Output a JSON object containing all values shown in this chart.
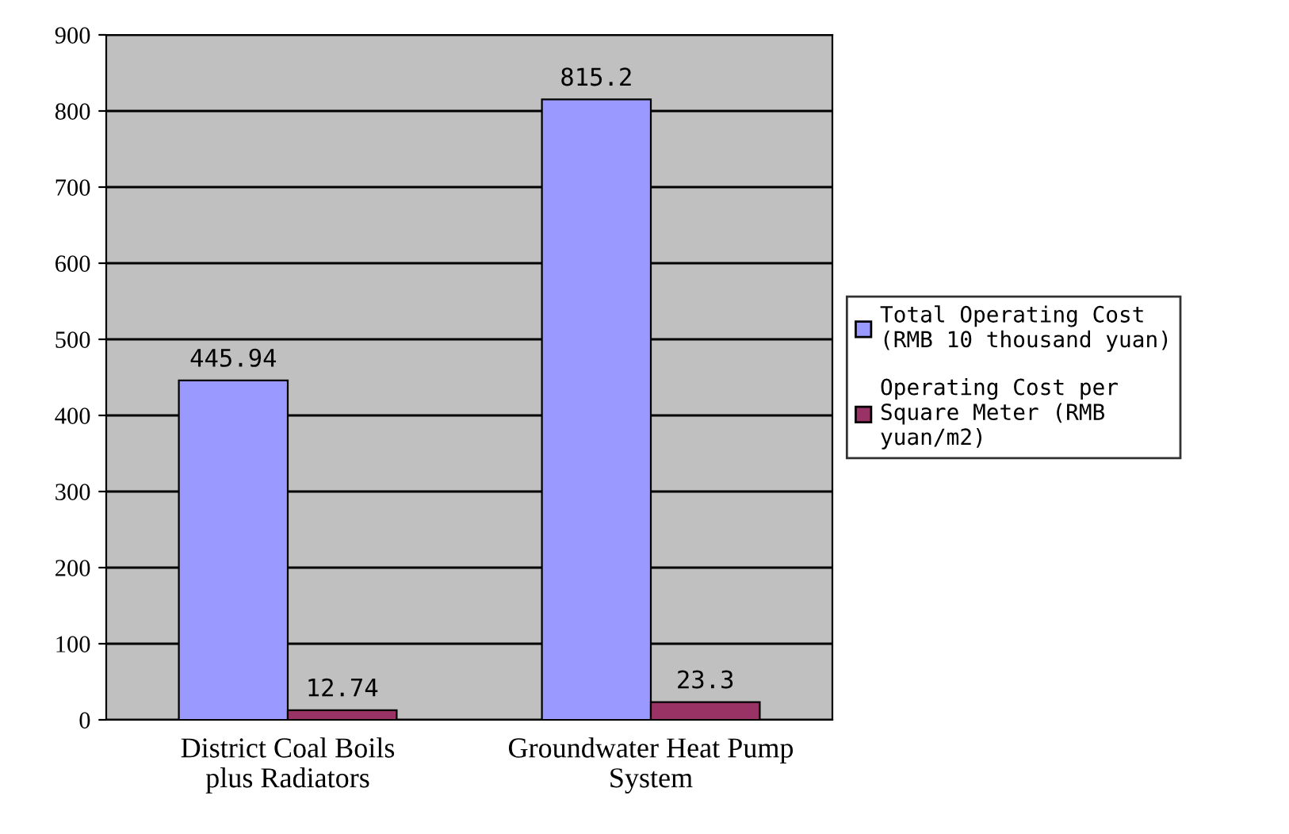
{
  "chart_data": {
    "type": "bar",
    "categories": [
      "District Coal Boils plus Radiators",
      "Groundwater Heat Pump System"
    ],
    "series": [
      {
        "name": "Total Operating Cost (RMB 10 thousand yuan)",
        "color": "#9999ff",
        "values": [
          445.94,
          815.2
        ]
      },
      {
        "name": "Operating Cost per Square Meter (RMB yuan/m2)",
        "color": "#993366",
        "values": [
          12.74,
          23.3
        ]
      }
    ],
    "ylim": [
      0,
      900
    ],
    "yticks": [
      0,
      100,
      200,
      300,
      400,
      500,
      600,
      700,
      800,
      900
    ],
    "grid": "y",
    "legend": "right",
    "data_labels": true
  }
}
